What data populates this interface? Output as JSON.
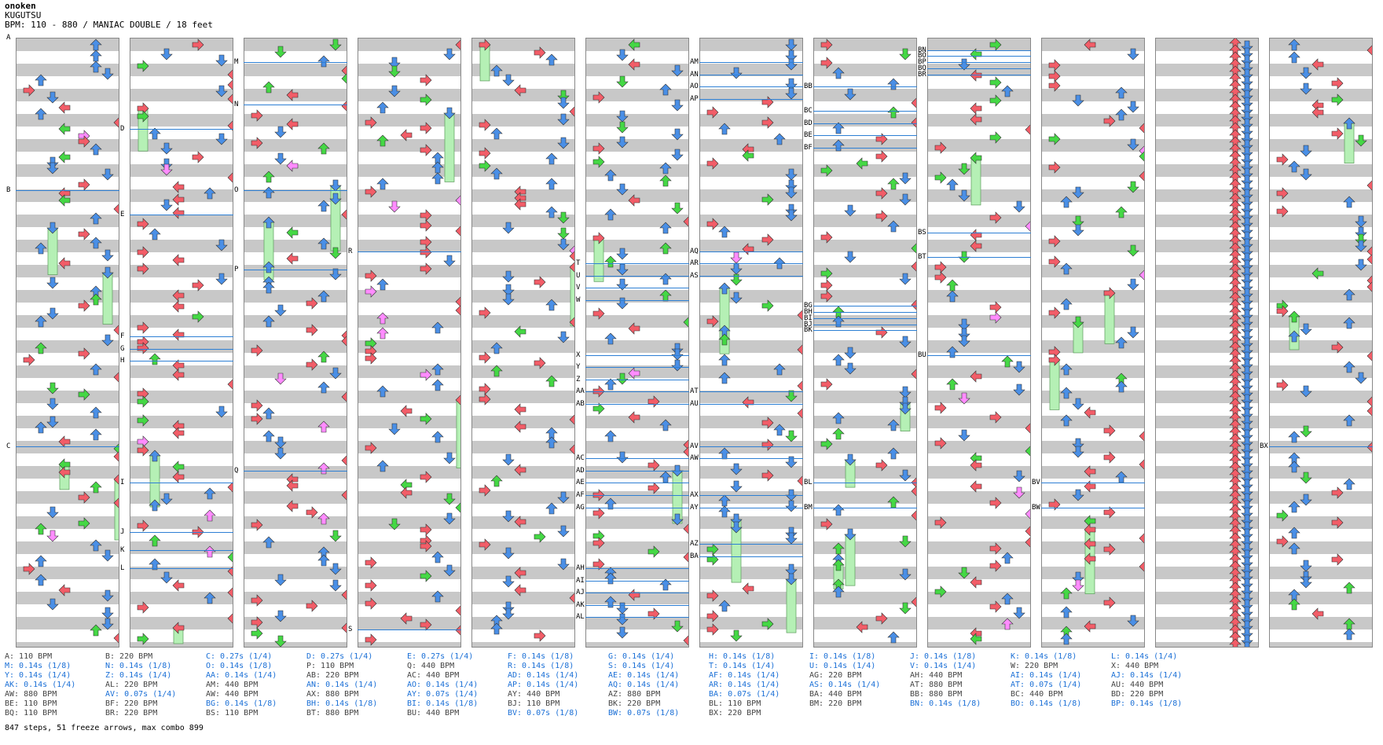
{
  "header": {
    "artist": "onoken",
    "song": "KUGUTSU",
    "info": "BPM: 110 - 880 / MANIAC DOUBLE / 18 feet"
  },
  "colors": {
    "left": "#f25d68",
    "down": "#4a8fe6",
    "up": "#4a8fe6",
    "right": "#f25d68",
    "eighth": "#45d845",
    "sixteenth": "#ff8cff",
    "freeze": "#b5f0b5",
    "band": "#c8c8c8",
    "line": "#2d7fd4"
  },
  "markers": [
    [
      "A",
      0,
      -0.05
    ],
    [
      "B",
      0,
      0.25
    ],
    [
      "C",
      0,
      0.67
    ],
    [
      "D",
      1,
      0.15
    ],
    [
      "E",
      1,
      0.29
    ],
    [
      "F",
      1,
      0.49
    ],
    [
      "G",
      1,
      0.51
    ],
    [
      "H",
      1,
      0.53
    ],
    [
      "I",
      1,
      0.73
    ],
    [
      "J",
      1,
      0.81
    ],
    [
      "K",
      1,
      0.84
    ],
    [
      "L",
      1,
      0.87
    ],
    [
      "M",
      2,
      0.04
    ],
    [
      "N",
      2,
      0.11
    ],
    [
      "O",
      2,
      0.25
    ],
    [
      "P",
      2,
      0.38
    ],
    [
      "Q",
      2,
      0.71
    ],
    [
      "R",
      3,
      0.35
    ],
    [
      "S",
      3,
      0.97
    ],
    [
      "T",
      5,
      0.37
    ],
    [
      "U",
      5,
      0.39
    ],
    [
      "V",
      5,
      0.41
    ],
    [
      "W",
      5,
      0.43
    ],
    [
      "X",
      5,
      0.52
    ],
    [
      "Y",
      5,
      0.54
    ],
    [
      "Z",
      5,
      0.56
    ],
    [
      "AA",
      5,
      0.58
    ],
    [
      "AB",
      5,
      0.6
    ],
    [
      "AC",
      5,
      0.69
    ],
    [
      "AD",
      5,
      0.71
    ],
    [
      "AE",
      5,
      0.73
    ],
    [
      "AF",
      5,
      0.75
    ],
    [
      "AG",
      5,
      0.77
    ],
    [
      "AH",
      5,
      0.87
    ],
    [
      "AI",
      5,
      0.89
    ],
    [
      "AJ",
      5,
      0.91
    ],
    [
      "AK",
      5,
      0.93
    ],
    [
      "AL",
      5,
      0.95
    ],
    [
      "AM",
      6,
      0.04
    ],
    [
      "AN",
      6,
      0.06
    ],
    [
      "AO",
      6,
      0.08
    ],
    [
      "AP",
      6,
      0.1
    ],
    [
      "AQ",
      6,
      0.35
    ],
    [
      "AR",
      6,
      0.37
    ],
    [
      "AS",
      6,
      0.39
    ],
    [
      "AT",
      6,
      0.58
    ],
    [
      "AU",
      6,
      0.6
    ],
    [
      "AV",
      6,
      0.67
    ],
    [
      "AW",
      6,
      0.69
    ],
    [
      "AX",
      6,
      0.75
    ],
    [
      "AY",
      6,
      0.77
    ],
    [
      "AZ",
      6,
      0.83
    ],
    [
      "BA",
      6,
      0.85
    ],
    [
      "BB",
      7,
      0.08
    ],
    [
      "BC",
      7,
      0.12
    ],
    [
      "BD",
      7,
      0.14
    ],
    [
      "BE",
      7,
      0.16
    ],
    [
      "BF",
      7,
      0.18
    ],
    [
      "BG",
      7,
      0.44
    ],
    [
      "BH",
      7,
      0.45
    ],
    [
      "BI",
      7,
      0.46
    ],
    [
      "BJ",
      7,
      0.47
    ],
    [
      "BK",
      7,
      0.48
    ],
    [
      "BL",
      7,
      0.73
    ],
    [
      "BM",
      7,
      0.77
    ],
    [
      "BN",
      8,
      0.02
    ],
    [
      "BO",
      8,
      0.03
    ],
    [
      "BP",
      8,
      0.04
    ],
    [
      "BQ",
      8,
      0.05
    ],
    [
      "BR",
      8,
      0.06
    ],
    [
      "BS",
      8,
      0.32
    ],
    [
      "BT",
      8,
      0.36
    ],
    [
      "BU",
      8,
      0.52
    ],
    [
      "BV",
      9,
      0.73
    ],
    [
      "BW",
      9,
      0.77
    ],
    [
      "BX",
      11,
      0.67
    ]
  ],
  "legend": [
    [
      [
        "A: 110 BPM",
        "k"
      ],
      [
        "M: 0.14s (1/8)",
        "b"
      ],
      [
        "Y: 0.14s (1/4)",
        "b"
      ],
      [
        "AK: 0.14s (1/4)",
        "b"
      ],
      [
        "AW: 880 BPM",
        "k"
      ],
      [
        "BE: 110 BPM",
        "k"
      ],
      [
        "BQ: 110 BPM",
        "k"
      ]
    ],
    [
      [
        "B: 220 BPM",
        "k"
      ],
      [
        "N: 0.14s (1/8)",
        "b"
      ],
      [
        "Z: 0.14s (1/4)",
        "b"
      ],
      [
        "AL: 220 BPM",
        "k"
      ],
      [
        "AV: 0.07s (1/4)",
        "b"
      ],
      [
        "BF: 220 BPM",
        "k"
      ],
      [
        "BR: 220 BPM",
        "k"
      ]
    ],
    [
      [
        "C: 0.27s (1/4)",
        "b"
      ],
      [
        "O: 0.14s (1/8)",
        "b"
      ],
      [
        "AA: 0.14s (1/4)",
        "b"
      ],
      [
        "AM: 440 BPM",
        "k"
      ],
      [
        "AW: 440 BPM",
        "k"
      ],
      [
        "BG: 0.14s (1/8)",
        "b"
      ],
      [
        "BS: 110 BPM",
        "k"
      ]
    ],
    [
      [
        "D: 0.27s (1/4)",
        "b"
      ],
      [
        "P: 110 BPM",
        "k"
      ],
      [
        "AB: 220 BPM",
        "k"
      ],
      [
        "AN: 0.14s (1/4)",
        "b"
      ],
      [
        "AX: 880 BPM",
        "k"
      ],
      [
        "BH: 0.14s (1/8)",
        "b"
      ],
      [
        "BT: 880 BPM",
        "k"
      ]
    ],
    [
      [
        "E: 0.27s (1/4)",
        "b"
      ],
      [
        "Q: 440 BPM",
        "k"
      ],
      [
        "AC: 440 BPM",
        "k"
      ],
      [
        "AO: 0.14s (1/4)",
        "b"
      ],
      [
        "AY: 0.07s (1/4)",
        "b"
      ],
      [
        "BI: 0.14s (1/8)",
        "b"
      ],
      [
        "BU: 440 BPM",
        "k"
      ]
    ],
    [
      [
        "F: 0.14s (1/8)",
        "b"
      ],
      [
        "R: 0.14s (1/8)",
        "b"
      ],
      [
        "AD: 0.14s (1/4)",
        "b"
      ],
      [
        "AP: 0.14s (1/4)",
        "b"
      ],
      [
        "AY: 440 BPM",
        "k"
      ],
      [
        "BJ: 110 BPM",
        "k"
      ],
      [
        "BV: 0.07s (1/8)",
        "b"
      ]
    ],
    [
      [
        "G: 0.14s (1/4)",
        "b"
      ],
      [
        "S: 0.14s (1/4)",
        "b"
      ],
      [
        "AE: 0.14s (1/4)",
        "b"
      ],
      [
        "AQ: 0.14s (1/4)",
        "b"
      ],
      [
        "AZ: 880 BPM",
        "k"
      ],
      [
        "BK: 220 BPM",
        "k"
      ],
      [
        "BW: 0.07s (1/8)",
        "b"
      ]
    ],
    [
      [
        "H: 0.14s (1/8)",
        "b"
      ],
      [
        "T: 0.14s (1/4)",
        "b"
      ],
      [
        "AF: 0.14s (1/4)",
        "b"
      ],
      [
        "AR: 0.14s (1/4)",
        "b"
      ],
      [
        "BA: 0.07s (1/4)",
        "b"
      ],
      [
        "BL: 110 BPM",
        "k"
      ],
      [
        "BX: 220 BPM",
        "k"
      ]
    ],
    [
      [
        "I: 0.14s (1/8)",
        "b"
      ],
      [
        "U: 0.14s (1/4)",
        "b"
      ],
      [
        "AG: 220 BPM",
        "k"
      ],
      [
        "AS: 0.14s (1/4)",
        "b"
      ],
      [
        "BA: 440 BPM",
        "k"
      ],
      [
        "BM: 220 BPM",
        "k"
      ]
    ],
    [
      [
        "J: 0.14s (1/8)",
        "b"
      ],
      [
        "V: 0.14s (1/4)",
        "b"
      ],
      [
        "AH: 440 BPM",
        "k"
      ],
      [
        "AT: 880 BPM",
        "k"
      ],
      [
        "BB: 880 BPM",
        "k"
      ],
      [
        "BN: 0.14s (1/8)",
        "b"
      ]
    ],
    [
      [
        "K: 0.14s (1/8)",
        "b"
      ],
      [
        "W: 220 BPM",
        "k"
      ],
      [
        "AI: 0.14s (1/4)",
        "b"
      ],
      [
        "AT: 0.07s (1/4)",
        "b"
      ],
      [
        "BC: 440 BPM",
        "k"
      ],
      [
        "BO: 0.14s (1/8)",
        "b"
      ]
    ],
    [
      [
        "L: 0.14s (1/4)",
        "b"
      ],
      [
        "X: 440 BPM",
        "k"
      ],
      [
        "AJ: 0.14s (1/4)",
        "b"
      ],
      [
        "AU: 440 BPM",
        "k"
      ],
      [
        "BD: 220 BPM",
        "k"
      ],
      [
        "BP: 0.14s (1/8)",
        "b"
      ]
    ]
  ],
  "footer": "847 steps, 51 freeze arrows, max combo 899"
}
